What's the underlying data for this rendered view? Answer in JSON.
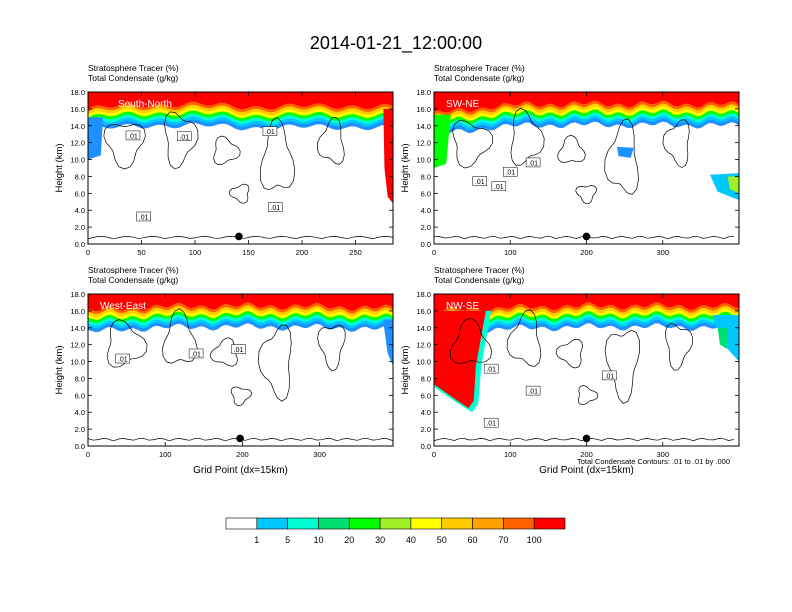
{
  "figure": {
    "title": "2014-01-21_12:00:00",
    "footnote": "Total Condensate Contours: .01 to .01 by .000"
  },
  "colorbar": {
    "levels": [
      "1",
      "5",
      "10",
      "20",
      "30",
      "40",
      "50",
      "60",
      "70",
      "100"
    ],
    "colors": [
      "#ffffff",
      "#1e90ff",
      "#00c8ff",
      "#00ffd2",
      "#00e070",
      "#00ff00",
      "#a0f028",
      "#ffff00",
      "#ffcc00",
      "#ffa000",
      "#ff6000",
      "#ff0000"
    ]
  },
  "chart_data": [
    {
      "type": "heatmap",
      "name": "South-North",
      "subtitle1": "Stratosphere Tracer   (%)",
      "subtitle2": "Total Condensate   (g/kg)",
      "ylabel": "Height (km)",
      "xlabel": "",
      "xlim": [
        0,
        285
      ],
      "ylim": [
        0,
        18
      ],
      "xticks": [
        "0",
        "50",
        "100",
        "150",
        "200",
        "250"
      ],
      "xtick_values": [
        0,
        50,
        100,
        150,
        200,
        250
      ],
      "yticks": [
        "0.0",
        "2.0",
        "4.0",
        "6.0",
        "8.0",
        "10.0",
        "12.0",
        "14.0",
        "16.0",
        "18.0"
      ],
      "marker_x": 141,
      "tropopause": [
        [
          0,
          16.0
        ],
        [
          20,
          16.2
        ],
        [
          60,
          16.6
        ],
        [
          100,
          16.5
        ],
        [
          150,
          16.3
        ],
        [
          200,
          16.3
        ],
        [
          250,
          16.4
        ],
        [
          285,
          16.2
        ]
      ],
      "contour_labels": [
        ".01",
        ".01",
        ".01",
        ".01",
        ".01"
      ]
    },
    {
      "type": "heatmap",
      "name": "SW-NE",
      "subtitle1": "Stratosphere Tracer   (%)",
      "subtitle2": "Total Condensate   (g/kg)",
      "ylabel": "Height (km)",
      "xlabel": "",
      "xlim": [
        0,
        400
      ],
      "ylim": [
        0,
        18
      ],
      "xticks": [
        "0",
        "100",
        "200",
        "300"
      ],
      "xtick_values": [
        0,
        100,
        200,
        300
      ],
      "yticks": [
        "0.0",
        "2.0",
        "4.0",
        "6.0",
        "8.0",
        "10.0",
        "12.0",
        "14.0",
        "16.0",
        "18.0"
      ],
      "marker_x": 200,
      "tropopause": [
        [
          0,
          15.5
        ],
        [
          40,
          15.8
        ],
        [
          80,
          16.4
        ],
        [
          160,
          16.6
        ],
        [
          240,
          16.6
        ],
        [
          320,
          16.6
        ],
        [
          400,
          16.5
        ]
      ],
      "contour_labels": [
        ".01",
        ".01",
        ".01",
        ".01"
      ]
    },
    {
      "type": "heatmap",
      "name": "West-East",
      "subtitle1": "Stratosphere Tracer   (%)",
      "subtitle2": "Total Condensate   (g/kg)",
      "ylabel": "Height (km)",
      "xlabel": "Grid Point (dx=15km)",
      "xlim": [
        0,
        395
      ],
      "ylim": [
        0,
        18
      ],
      "xticks": [
        "0",
        "100",
        "200",
        "300"
      ],
      "xtick_values": [
        0,
        100,
        200,
        300
      ],
      "yticks": [
        "0.0",
        "2.0",
        "4.0",
        "6.0",
        "8.0",
        "10.0",
        "12.0",
        "14.0",
        "16.0",
        "18.0"
      ],
      "marker_x": 197,
      "tropopause": [
        [
          0,
          16.0
        ],
        [
          80,
          16.5
        ],
        [
          160,
          16.6
        ],
        [
          240,
          16.6
        ],
        [
          320,
          16.5
        ],
        [
          395,
          16.3
        ]
      ],
      "contour_labels": [
        ".01",
        ".01",
        ".01"
      ]
    },
    {
      "type": "heatmap",
      "name": "NW-SE",
      "subtitle1": "Stratosphere Tracer   (%)",
      "subtitle2": "Total Condensate   (g/kg)",
      "ylabel": "Height (km)",
      "xlabel": "Grid Point (dx=15km)",
      "xlim": [
        0,
        400
      ],
      "ylim": [
        0,
        18
      ],
      "xticks": [
        "0",
        "100",
        "200",
        "300"
      ],
      "xtick_values": [
        0,
        100,
        200,
        300
      ],
      "yticks": [
        "0.0",
        "2.0",
        "4.0",
        "6.0",
        "8.0",
        "10.0",
        "12.0",
        "14.0",
        "16.0",
        "18.0"
      ],
      "marker_x": 200,
      "tropopause": [
        [
          0,
          16.0
        ],
        [
          100,
          16.4
        ],
        [
          200,
          16.6
        ],
        [
          300,
          16.6
        ],
        [
          400,
          16.5
        ]
      ],
      "contour_labels": [
        ".01",
        ".01",
        ".01",
        ".01"
      ]
    }
  ]
}
